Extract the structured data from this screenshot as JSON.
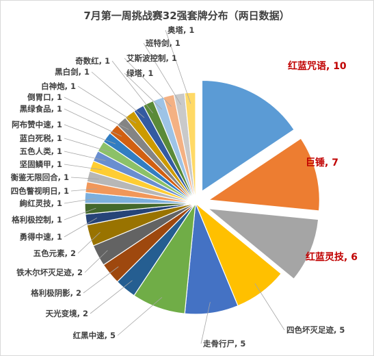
{
  "chart_data": {
    "type": "pie",
    "title": "7月第一周挑战赛32强套牌分布（两日数据）",
    "slices": [
      {
        "name": "红蓝咒语",
        "value": 10,
        "color": "#5b9bd5",
        "exploded": true
      },
      {
        "name": "巨锤",
        "value": 7,
        "color": "#ed7d31",
        "exploded": true
      },
      {
        "name": "红蓝灵技",
        "value": 6,
        "color": "#a5a5a5",
        "exploded": true
      },
      {
        "name": "四色坏灭足迹",
        "value": 5,
        "color": "#ffc000",
        "exploded": false
      },
      {
        "name": "走骨行尸",
        "value": 5,
        "color": "#4472c4",
        "exploded": false
      },
      {
        "name": "红黑中速",
        "value": 5,
        "color": "#70ad47",
        "exploded": false
      },
      {
        "name": "天光变境",
        "value": 2,
        "color": "#255e91",
        "exploded": false
      },
      {
        "name": "格利极阴影",
        "value": 2,
        "color": "#9e480e",
        "exploded": false
      },
      {
        "name": "铁木尔坏灭足迹",
        "value": 2,
        "color": "#636363",
        "exploded": false
      },
      {
        "name": "五色元素",
        "value": 2,
        "color": "#997300",
        "exploded": false
      },
      {
        "name": "勇得中速",
        "value": 1,
        "color": "#264478",
        "exploded": false
      },
      {
        "name": "格利极控制",
        "value": 1,
        "color": "#43682b",
        "exploded": false
      },
      {
        "name": "絢红灵技",
        "value": 1,
        "color": "#7cafdd",
        "exploded": false
      },
      {
        "name": "四色瞥视明日",
        "value": 1,
        "color": "#f1975a",
        "exploded": false
      },
      {
        "name": "衡鉴无限回合",
        "value": 1,
        "color": "#b7b7b7",
        "exploded": false
      },
      {
        "name": "坚固鳞甲",
        "value": 1,
        "color": "#ffcd33",
        "exploded": false
      },
      {
        "name": "五色人类",
        "value": 1,
        "color": "#698ed0",
        "exploded": false
      },
      {
        "name": "蓝白死税",
        "value": 1,
        "color": "#8cc168",
        "exploded": false
      },
      {
        "name": "阿布赞中速",
        "value": 1,
        "color": "#327dc2",
        "exploded": false
      },
      {
        "name": "黑绿食品",
        "value": 1,
        "color": "#d26012",
        "exploded": false
      },
      {
        "name": "倒胃口",
        "value": 1,
        "color": "#848484",
        "exploded": false
      },
      {
        "name": "白神炮",
        "value": 1,
        "color": "#cc9a00",
        "exploded": false
      },
      {
        "name": "黑白剑",
        "value": 1,
        "color": "#335aa1",
        "exploded": false
      },
      {
        "name": "奇数红",
        "value": 1,
        "color": "#5a8a39",
        "exploded": false
      },
      {
        "name": "绿塔",
        "value": 1,
        "color": "#9dc3e6",
        "exploded": false
      },
      {
        "name": "艾斯波控制",
        "value": 1,
        "color": "#f4b183",
        "exploded": false
      },
      {
        "name": "班特剑",
        "value": 1,
        "color": "#c9c9c9",
        "exploded": false
      },
      {
        "name": "奥塔",
        "value": 1,
        "color": "#ffd966",
        "exploded": false
      }
    ],
    "label_separator": ", "
  }
}
